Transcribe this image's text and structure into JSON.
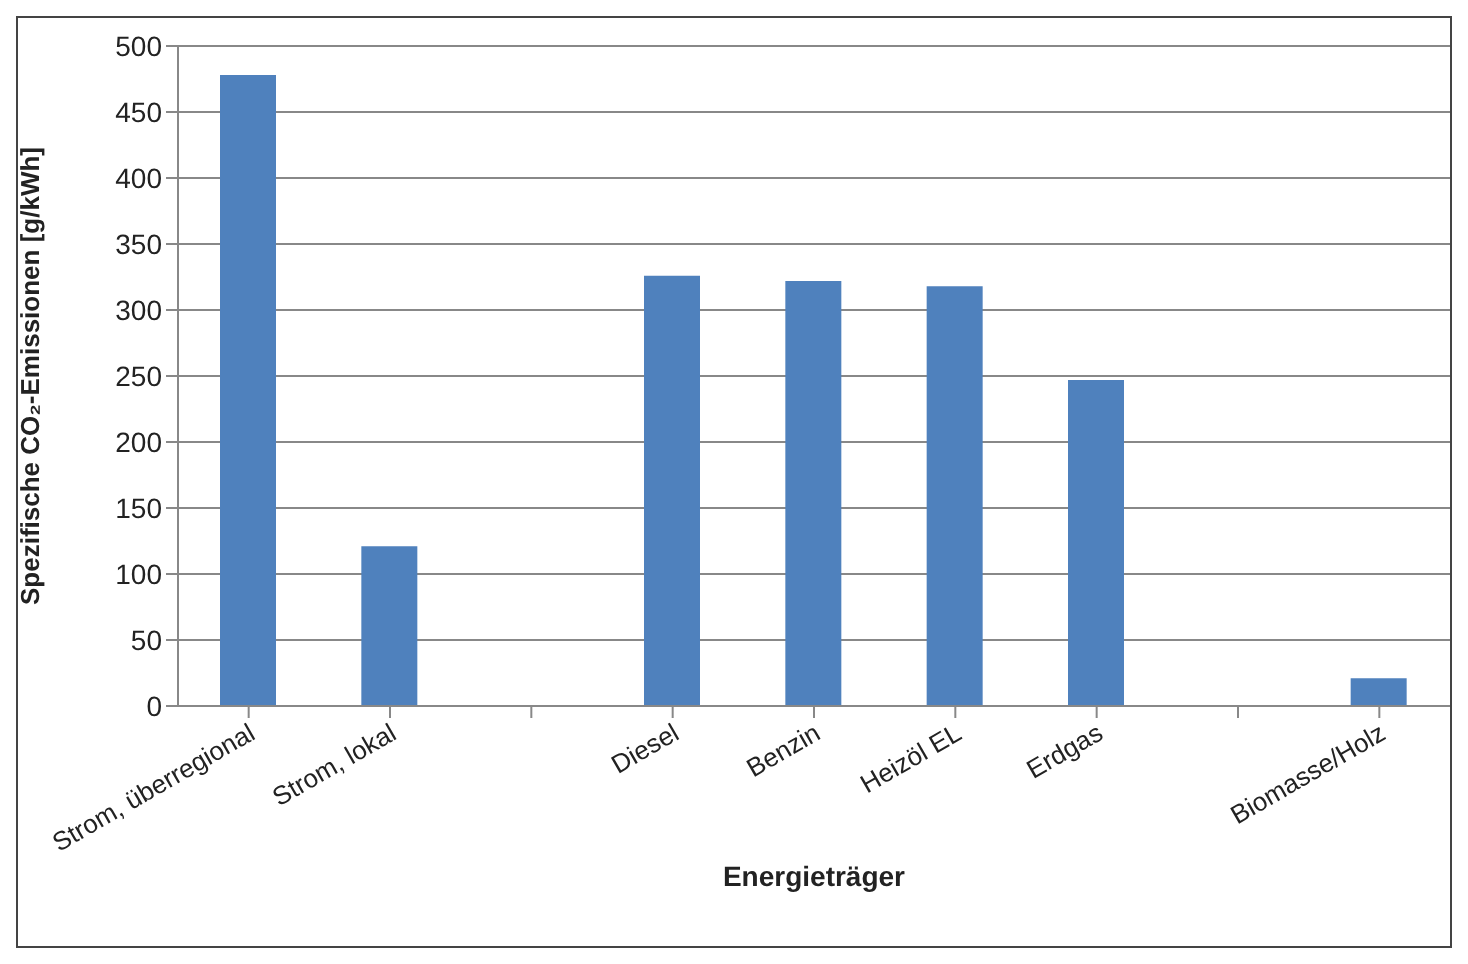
{
  "chart_data": {
    "type": "bar",
    "xlabel": "Energieträger",
    "ylabel": "Spezifische CO₂-Emissionen [g/kWh]",
    "categories": [
      "Strom, überregional",
      "Strom, lokal",
      null,
      "Diesel",
      "Benzin",
      "Heizöl EL",
      "Erdgas",
      null,
      "Biomasse/Holz"
    ],
    "values": [
      478,
      121,
      null,
      326,
      322,
      318,
      247,
      null,
      21
    ],
    "color": "#4f81bd",
    "ylim": [
      0,
      500
    ],
    "yticks": [
      0,
      50,
      100,
      150,
      200,
      250,
      300,
      350,
      400,
      450,
      500
    ],
    "grid": "y"
  }
}
